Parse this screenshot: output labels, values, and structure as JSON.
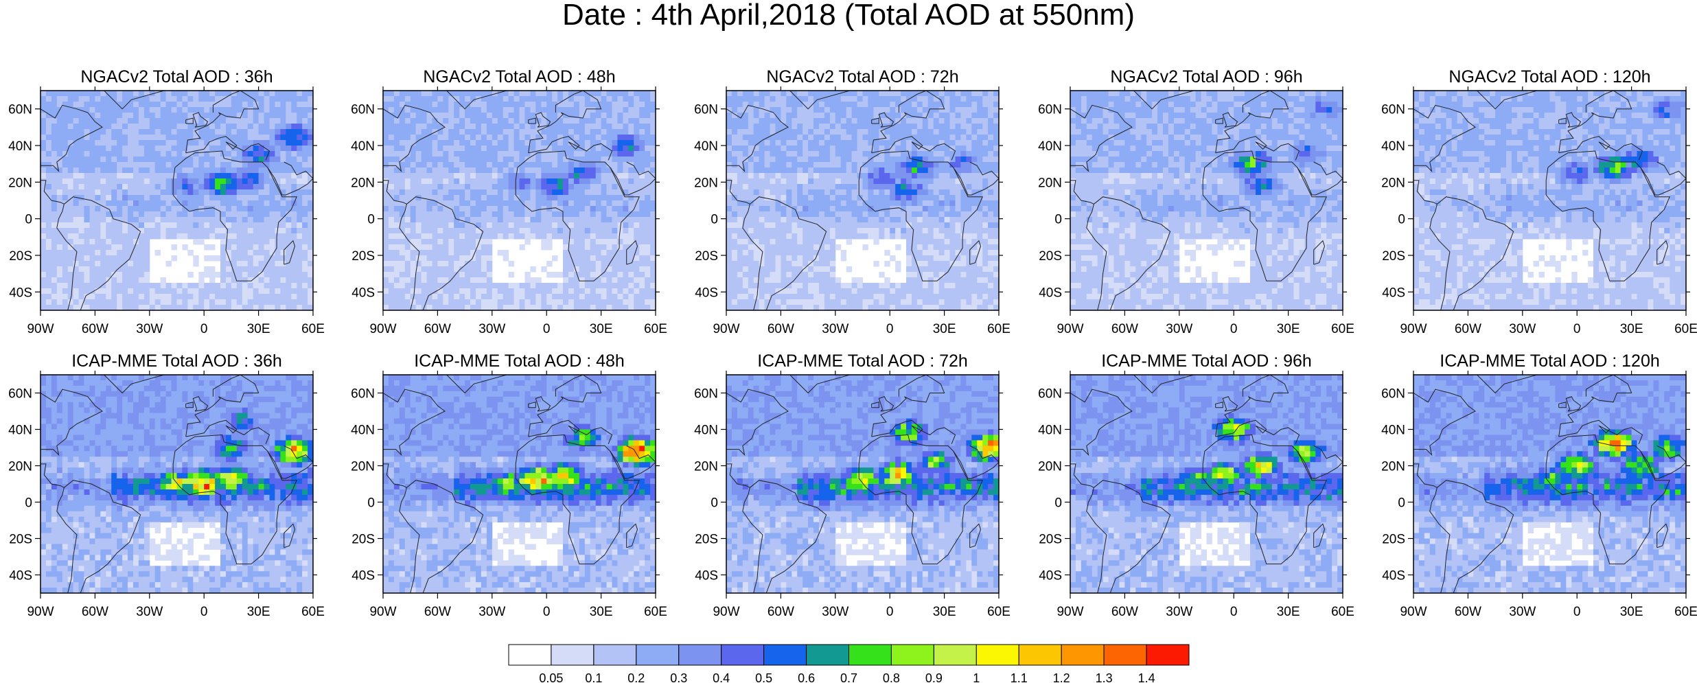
{
  "title": "Date : 4th April,2018 (Total AOD at 550nm)",
  "chart_data": {
    "type": "heatmap",
    "rows": [
      {
        "model": "NGACv2",
        "panels": [
          {
            "title": "NGACv2 Total AOD : 36h",
            "lead": "36h"
          },
          {
            "title": "NGACv2 Total AOD : 48h",
            "lead": "48h"
          },
          {
            "title": "NGACv2 Total AOD : 72h",
            "lead": "72h"
          },
          {
            "title": "NGACv2 Total AOD : 96h",
            "lead": "96h"
          },
          {
            "title": "NGACv2 Total AOD : 120h",
            "lead": "120h"
          }
        ]
      },
      {
        "model": "ICAP-MME",
        "panels": [
          {
            "title": "ICAP-MME Total AOD : 36h",
            "lead": "36h"
          },
          {
            "title": "ICAP-MME Total AOD : 48h",
            "lead": "48h"
          },
          {
            "title": "ICAP-MME Total AOD : 72h",
            "lead": "72h"
          },
          {
            "title": "ICAP-MME Total AOD : 96h",
            "lead": "96h"
          },
          {
            "title": "ICAP-MME Total AOD : 120h",
            "lead": "120h"
          }
        ]
      }
    ],
    "x_ticks": [
      {
        "label": "90W",
        "lon": -90
      },
      {
        "label": "60W",
        "lon": -60
      },
      {
        "label": "30W",
        "lon": -30
      },
      {
        "label": "0",
        "lon": 0
      },
      {
        "label": "30E",
        "lon": 30
      },
      {
        "label": "60E",
        "lon": 60
      }
    ],
    "y_ticks": [
      {
        "label": "60N",
        "lat": 60
      },
      {
        "label": "40N",
        "lat": 40
      },
      {
        "label": "20N",
        "lat": 20
      },
      {
        "label": "0",
        "lat": 0
      },
      {
        "label": "20S",
        "lat": -20
      },
      {
        "label": "40S",
        "lat": -40
      }
    ],
    "lon_range": [
      -90,
      60
    ],
    "lat_range": [
      -50,
      70
    ],
    "colorbar": {
      "levels": [
        "0.05",
        "0.1",
        "0.2",
        "0.3",
        "0.4",
        "0.5",
        "0.6",
        "0.7",
        "0.8",
        "0.9",
        "1",
        "1.1",
        "1.2",
        "1.3",
        "1.4"
      ],
      "colors": [
        "#ffffff",
        "#d5dcf8",
        "#b4c3f5",
        "#8eabf5",
        "#7d93f0",
        "#5b68ed",
        "#1764ec",
        "#119992",
        "#35e11a",
        "#8ef21d",
        "#c5f248",
        "#fbf703",
        "#fcc603",
        "#fd9600",
        "#fc6502",
        "#fd1a02"
      ]
    },
    "hotspots": {
      "NGACv2": [
        [
          {
            "lon": 25,
            "lat": 22,
            "aod": 0.55
          },
          {
            "lon": 10,
            "lat": 19,
            "aod": 0.7
          },
          {
            "lon": 30,
            "lat": 35,
            "aod": 0.6
          },
          {
            "lon": 50,
            "lat": 45,
            "aod": 0.65
          },
          {
            "lon": -10,
            "lat": 18,
            "aod": 0.45
          }
        ],
        [
          {
            "lon": 20,
            "lat": 25,
            "aod": 0.55
          },
          {
            "lon": 5,
            "lat": 18,
            "aod": 0.6
          },
          {
            "lon": 45,
            "lat": 40,
            "aod": 0.55
          },
          {
            "lon": -15,
            "lat": 20,
            "aod": 0.45
          }
        ],
        [
          {
            "lon": 15,
            "lat": 28,
            "aod": 0.65
          },
          {
            "lon": 10,
            "lat": 15,
            "aod": 0.6
          },
          {
            "lon": -5,
            "lat": 22,
            "aod": 0.5
          },
          {
            "lon": 40,
            "lat": 30,
            "aod": 0.45
          }
        ],
        [
          {
            "lon": 10,
            "lat": 30,
            "aod": 0.75
          },
          {
            "lon": 15,
            "lat": 18,
            "aod": 0.55
          },
          {
            "lon": 40,
            "lat": 35,
            "aod": 0.5
          },
          {
            "lon": 50,
            "lat": 60,
            "aod": 0.45
          }
        ],
        [
          {
            "lon": 20,
            "lat": 28,
            "aod": 0.8
          },
          {
            "lon": 35,
            "lat": 32,
            "aod": 0.6
          },
          {
            "lon": 0,
            "lat": 25,
            "aod": 0.5
          },
          {
            "lon": 50,
            "lat": 60,
            "aod": 0.5
          }
        ]
      ],
      "ICAP-MME": [
        [
          {
            "lon": 0,
            "lat": 10,
            "aod": 1.25
          },
          {
            "lon": -15,
            "lat": 10,
            "aod": 0.95
          },
          {
            "lon": 15,
            "lat": 12,
            "aod": 1.0
          },
          {
            "lon": 50,
            "lat": 28,
            "aod": 1.15
          },
          {
            "lon": 15,
            "lat": 30,
            "aod": 0.75
          },
          {
            "lon": 20,
            "lat": 45,
            "aod": 0.6
          }
        ],
        [
          {
            "lon": -5,
            "lat": 12,
            "aod": 1.25
          },
          {
            "lon": 10,
            "lat": 14,
            "aod": 1.0
          },
          {
            "lon": -20,
            "lat": 10,
            "aod": 0.85
          },
          {
            "lon": 50,
            "lat": 28,
            "aod": 1.35
          },
          {
            "lon": 20,
            "lat": 35,
            "aod": 0.75
          }
        ],
        [
          {
            "lon": 5,
            "lat": 15,
            "aod": 1.05
          },
          {
            "lon": -15,
            "lat": 12,
            "aod": 0.9
          },
          {
            "lon": 55,
            "lat": 30,
            "aod": 1.3
          },
          {
            "lon": 10,
            "lat": 38,
            "aod": 0.85
          },
          {
            "lon": 25,
            "lat": 22,
            "aod": 0.8
          }
        ],
        [
          {
            "lon": 0,
            "lat": 40,
            "aod": 0.95
          },
          {
            "lon": -5,
            "lat": 15,
            "aod": 0.95
          },
          {
            "lon": 15,
            "lat": 20,
            "aod": 0.95
          },
          {
            "lon": 40,
            "lat": 28,
            "aod": 0.9
          },
          {
            "lon": -20,
            "lat": 12,
            "aod": 0.8
          }
        ],
        [
          {
            "lon": 20,
            "lat": 32,
            "aod": 1.25
          },
          {
            "lon": 0,
            "lat": 20,
            "aod": 0.95
          },
          {
            "lon": 35,
            "lat": 20,
            "aod": 0.9
          },
          {
            "lon": -15,
            "lat": 12,
            "aod": 0.75
          },
          {
            "lon": 50,
            "lat": 30,
            "aod": 0.8
          }
        ]
      ]
    },
    "background_aod": {
      "NGACv2": 0.15,
      "ICAP-MME": 0.2
    },
    "itcz_band_aod": {
      "NGACv2": 0.12,
      "ICAP-MME": 0.45
    }
  }
}
